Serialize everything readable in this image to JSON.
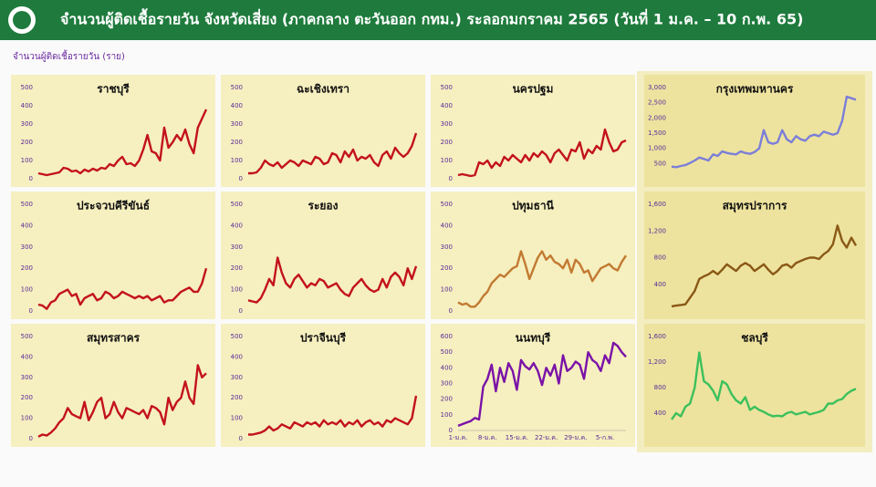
{
  "header": {
    "title": "จำนวนผู้ติดเชื้อรายวัน  จังหวัดเสี่ยง (ภาคกลาง ตะวันออก กทม.) ระลอกมกราคม 2565 (วันที่ 1 ม.ค. – 10 ก.พ. 65)",
    "subtitle": "จำนวนผู้ติดเชื้อรายวัน (ราย)"
  },
  "chart_data": [
    {
      "type": "line",
      "title": "ราชบุรี",
      "color": "#c3121c",
      "ylim": [
        0,
        500
      ],
      "yticks": [
        0,
        100,
        200,
        300,
        400,
        500
      ],
      "values": [
        30,
        25,
        20,
        25,
        30,
        35,
        60,
        55,
        40,
        45,
        30,
        50,
        40,
        55,
        45,
        60,
        55,
        80,
        70,
        100,
        120,
        80,
        85,
        70,
        100,
        160,
        240,
        150,
        140,
        100,
        280,
        170,
        200,
        240,
        210,
        270,
        190,
        140,
        280,
        330,
        380
      ]
    },
    {
      "type": "line",
      "title": "ฉะเชิงเทรา",
      "color": "#c3121c",
      "ylim": [
        0,
        500
      ],
      "yticks": [
        0,
        100,
        200,
        300,
        400,
        500
      ],
      "values": [
        30,
        30,
        35,
        60,
        100,
        80,
        70,
        90,
        60,
        80,
        100,
        90,
        70,
        100,
        90,
        80,
        120,
        110,
        80,
        90,
        140,
        130,
        90,
        150,
        120,
        160,
        100,
        120,
        110,
        130,
        90,
        70,
        130,
        150,
        110,
        170,
        140,
        120,
        140,
        180,
        250
      ]
    },
    {
      "type": "line",
      "title": "นครปฐม",
      "color": "#c3121c",
      "ylim": [
        0,
        500
      ],
      "yticks": [
        0,
        100,
        200,
        300,
        400,
        500
      ],
      "values": [
        20,
        25,
        20,
        15,
        20,
        90,
        80,
        100,
        60,
        90,
        70,
        120,
        100,
        130,
        110,
        90,
        130,
        100,
        140,
        120,
        150,
        130,
        90,
        140,
        160,
        130,
        100,
        160,
        150,
        200,
        110,
        160,
        140,
        180,
        160,
        270,
        200,
        150,
        160,
        200,
        210
      ]
    },
    {
      "type": "line",
      "title": "กรุงเทพมหานคร",
      "color": "#7b7ed8",
      "ylim": [
        0,
        3000
      ],
      "yticks": [
        500,
        {
          "value": 1000,
          "label": "1,000"
        },
        {
          "value": 1500,
          "label": "1,500"
        },
        {
          "value": 2000,
          "label": "2,000"
        },
        {
          "value": 2500,
          "label": "2,500"
        },
        {
          "value": 3000,
          "label": "3,000"
        }
      ],
      "values": [
        400,
        380,
        420,
        450,
        520,
        600,
        700,
        650,
        600,
        800,
        750,
        900,
        850,
        820,
        800,
        900,
        850,
        820,
        880,
        1000,
        1600,
        1200,
        1150,
        1200,
        1600,
        1300,
        1200,
        1400,
        1300,
        1250,
        1400,
        1450,
        1400,
        1550,
        1500,
        1450,
        1500,
        1900,
        2700,
        2650,
        2600
      ]
    },
    {
      "type": "line",
      "title": "ประจวบคีรีขันธ์",
      "color": "#c3121c",
      "ylim": [
        0,
        500
      ],
      "yticks": [
        0,
        100,
        200,
        300,
        400,
        500
      ],
      "values": [
        30,
        25,
        10,
        40,
        50,
        80,
        90,
        100,
        70,
        80,
        30,
        60,
        70,
        80,
        50,
        60,
        90,
        80,
        60,
        70,
        90,
        80,
        70,
        60,
        70,
        60,
        70,
        50,
        60,
        70,
        40,
        50,
        50,
        70,
        90,
        100,
        110,
        90,
        90,
        130,
        200
      ]
    },
    {
      "type": "line",
      "title": "ระยอง",
      "color": "#c3121c",
      "ylim": [
        0,
        500
      ],
      "yticks": [
        0,
        100,
        200,
        300,
        400,
        500
      ],
      "values": [
        50,
        45,
        40,
        60,
        100,
        150,
        120,
        250,
        180,
        130,
        110,
        150,
        170,
        140,
        110,
        130,
        120,
        150,
        140,
        110,
        120,
        130,
        100,
        80,
        70,
        110,
        130,
        150,
        120,
        100,
        90,
        100,
        150,
        110,
        160,
        180,
        160,
        120,
        200,
        150,
        210
      ]
    },
    {
      "type": "line",
      "title": "ปทุมธานี",
      "color": "#c27a32",
      "ylim": [
        0,
        500
      ],
      "yticks": [
        0,
        100,
        200,
        300,
        400,
        500
      ],
      "values": [
        40,
        30,
        35,
        20,
        20,
        40,
        70,
        90,
        130,
        150,
        170,
        160,
        180,
        200,
        210,
        280,
        220,
        150,
        200,
        250,
        280,
        240,
        260,
        230,
        220,
        200,
        240,
        180,
        240,
        220,
        180,
        190,
        140,
        170,
        200,
        210,
        220,
        200,
        190,
        230,
        260
      ]
    },
    {
      "type": "line",
      "title": "สมุทรปราการ",
      "color": "#8a5816",
      "ylim": [
        0,
        1600
      ],
      "yticks": [
        400,
        800,
        {
          "value": 1200,
          "label": "1,200"
        },
        {
          "value": 1600,
          "label": "1,600"
        }
      ],
      "values": [
        70,
        80,
        90,
        100,
        200,
        300,
        480,
        520,
        550,
        600,
        550,
        620,
        700,
        650,
        600,
        680,
        720,
        680,
        600,
        650,
        700,
        620,
        550,
        600,
        680,
        700,
        650,
        720,
        750,
        780,
        800,
        800,
        780,
        850,
        900,
        1000,
        1280,
        1050,
        950,
        1100,
        980
      ]
    },
    {
      "type": "line",
      "title": "สมุทรสาคร",
      "color": "#c3121c",
      "ylim": [
        0,
        500
      ],
      "yticks": [
        0,
        100,
        200,
        300,
        400,
        500
      ],
      "values": [
        10,
        20,
        15,
        30,
        50,
        80,
        100,
        150,
        120,
        110,
        100,
        180,
        90,
        130,
        180,
        200,
        100,
        120,
        180,
        130,
        100,
        150,
        140,
        130,
        120,
        140,
        100,
        160,
        150,
        130,
        70,
        200,
        140,
        180,
        200,
        280,
        200,
        170,
        360,
        300,
        320
      ]
    },
    {
      "type": "line",
      "title": "ปราจีนบุรี",
      "color": "#c3121c",
      "ylim": [
        0,
        500
      ],
      "yticks": [
        0,
        100,
        200,
        300,
        400,
        500
      ],
      "values": [
        20,
        20,
        25,
        30,
        40,
        60,
        40,
        50,
        70,
        60,
        50,
        80,
        70,
        60,
        80,
        70,
        80,
        60,
        90,
        70,
        80,
        70,
        90,
        60,
        80,
        70,
        90,
        60,
        80,
        90,
        70,
        80,
        60,
        90,
        80,
        100,
        90,
        80,
        70,
        100,
        210
      ]
    },
    {
      "type": "line",
      "title": "นนทบุรี",
      "color": "#7a12a8",
      "ylim": [
        0,
        600
      ],
      "yticks": [
        0,
        100,
        200,
        300,
        400,
        500,
        600
      ],
      "categories": [
        "1-ม.ค.",
        null,
        null,
        null,
        null,
        null,
        null,
        "8-ม.ค.",
        null,
        null,
        null,
        null,
        null,
        null,
        "15-ม.ค.",
        null,
        null,
        null,
        null,
        null,
        null,
        "22-ม.ค.",
        null,
        null,
        null,
        null,
        null,
        null,
        "29-ม.ค.",
        null,
        null,
        null,
        null,
        null,
        null,
        "5-ก.พ.",
        null,
        null,
        null,
        null,
        null
      ],
      "values": [
        30,
        40,
        50,
        60,
        80,
        70,
        280,
        330,
        420,
        250,
        400,
        310,
        430,
        380,
        260,
        450,
        410,
        390,
        430,
        380,
        290,
        400,
        350,
        420,
        300,
        480,
        380,
        400,
        440,
        420,
        330,
        500,
        450,
        430,
        380,
        480,
        430,
        560,
        540,
        500,
        470
      ]
    },
    {
      "type": "line",
      "title": "ชลบุรี",
      "color": "#3cc05c",
      "ylim": [
        0,
        1600
      ],
      "yticks": [
        400,
        800,
        {
          "value": 1200,
          "label": "1,200"
        },
        {
          "value": 1600,
          "label": "1,600"
        }
      ],
      "values": [
        300,
        400,
        350,
        500,
        550,
        800,
        1350,
        900,
        850,
        750,
        600,
        900,
        850,
        700,
        600,
        550,
        650,
        450,
        500,
        450,
        420,
        380,
        350,
        360,
        350,
        400,
        420,
        380,
        400,
        420,
        380,
        400,
        420,
        450,
        550,
        550,
        600,
        620,
        700,
        750,
        780
      ]
    }
  ]
}
